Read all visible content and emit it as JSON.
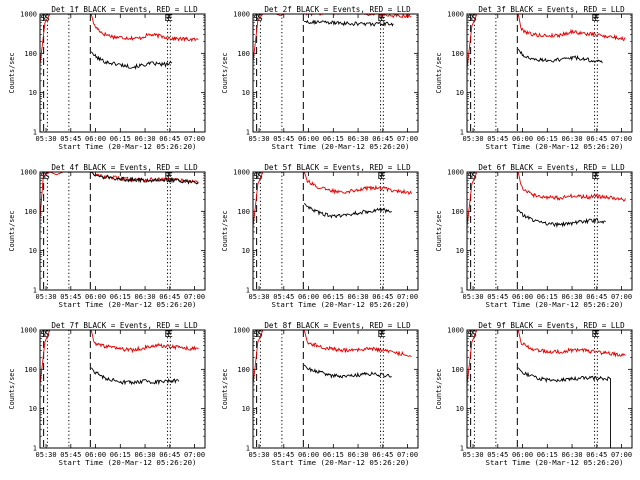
{
  "figure": {
    "shared": {
      "type": "line",
      "title_suffix": "BLACK = Events, RED = LLD",
      "xlabel": "Start Time (20-Mar-12 05:26:20)",
      "ylabel": "Counts/sec",
      "x_ticks": [
        "05:30",
        "05:45",
        "06:00",
        "06:15",
        "06:30",
        "06:45",
        "07:00"
      ],
      "x_tick_minutes": [
        3.67,
        18.67,
        33.67,
        48.67,
        63.67,
        78.67,
        93.67
      ],
      "xlim_minutes": [
        0,
        100
      ],
      "y_scale": "log",
      "ylim": [
        1,
        1000
      ],
      "y_ticks": [
        "1",
        "10",
        "100",
        "1000"
      ],
      "markers": [
        {
          "label": "S",
          "minute": 2.2,
          "style": "dashed"
        },
        {
          "label": "S",
          "minute": 4.5,
          "style": "dotted"
        },
        {
          "label": "",
          "minute": 17.5,
          "style": "dotted"
        },
        {
          "label": "",
          "minute": 30.5,
          "style": "dashed"
        },
        {
          "label": "E",
          "minute": 77.3,
          "style": "dotted"
        },
        {
          "label": "E",
          "minute": 79.0,
          "style": "dotted"
        }
      ],
      "series_colors": {
        "events": "#000000",
        "lld": "#e00000"
      }
    },
    "panels": [
      {
        "title": "Det 1f",
        "jump_minute": 31.0,
        "events": [
          [
            31,
            110
          ],
          [
            34,
            80
          ],
          [
            40,
            60
          ],
          [
            48,
            52
          ],
          [
            56,
            45
          ],
          [
            62,
            50
          ],
          [
            68,
            56
          ],
          [
            74,
            52
          ],
          [
            80,
            55
          ]
        ],
        "lld": [
          [
            0,
            50
          ],
          [
            3,
            600
          ],
          [
            6,
            1000
          ],
          [
            31,
            1000
          ],
          [
            33,
            500
          ],
          [
            38,
            320
          ],
          [
            45,
            260
          ],
          [
            52,
            250
          ],
          [
            60,
            240
          ],
          [
            66,
            300
          ],
          [
            72,
            280
          ],
          [
            80,
            240
          ],
          [
            88,
            230
          ],
          [
            96,
            220
          ]
        ]
      },
      {
        "title": "Det 2f",
        "jump_minute": 31.0,
        "events": [
          [
            31,
            650
          ],
          [
            40,
            620
          ],
          [
            55,
            580
          ],
          [
            70,
            560
          ],
          [
            85,
            560
          ]
        ],
        "lld": [
          [
            0,
            60
          ],
          [
            3,
            700
          ],
          [
            6,
            1000
          ],
          [
            14,
            1000
          ],
          [
            17,
            900
          ],
          [
            20,
            1100
          ],
          [
            31,
            1000
          ],
          [
            40,
            1050
          ],
          [
            52,
            1100
          ],
          [
            62,
            1200
          ],
          [
            70,
            1000
          ],
          [
            85,
            920
          ],
          [
            96,
            900
          ]
        ]
      },
      {
        "title": "Det 3f",
        "jump_minute": 31.0,
        "events": [
          [
            31,
            130
          ],
          [
            34,
            85
          ],
          [
            42,
            70
          ],
          [
            50,
            65
          ],
          [
            58,
            70
          ],
          [
            64,
            78
          ],
          [
            70,
            75
          ],
          [
            76,
            65
          ],
          [
            82,
            60
          ]
        ],
        "lld": [
          [
            0,
            40
          ],
          [
            3,
            500
          ],
          [
            6,
            1000
          ],
          [
            31,
            1000
          ],
          [
            33,
            400
          ],
          [
            40,
            300
          ],
          [
            48,
            280
          ],
          [
            56,
            290
          ],
          [
            64,
            360
          ],
          [
            70,
            320
          ],
          [
            78,
            300
          ],
          [
            86,
            270
          ],
          [
            96,
            230
          ]
        ]
      },
      {
        "title": "Det 4f",
        "jump_minute": 31.0,
        "events": [
          [
            31,
            1000
          ],
          [
            34,
            800
          ],
          [
            42,
            720
          ],
          [
            54,
            640
          ],
          [
            66,
            620
          ],
          [
            80,
            620
          ],
          [
            96,
            540
          ]
        ],
        "lld": [
          [
            0,
            60
          ],
          [
            2,
            800
          ],
          [
            6,
            1000
          ],
          [
            10,
            850
          ],
          [
            14,
            1000
          ],
          [
            31,
            1000
          ],
          [
            34,
            820
          ],
          [
            42,
            740
          ],
          [
            54,
            660
          ],
          [
            66,
            640
          ],
          [
            80,
            640
          ],
          [
            96,
            560
          ]
        ]
      },
      {
        "title": "Det 5f",
        "jump_minute": 31.0,
        "events": [
          [
            31,
            160
          ],
          [
            34,
            120
          ],
          [
            40,
            90
          ],
          [
            48,
            75
          ],
          [
            56,
            78
          ],
          [
            62,
            90
          ],
          [
            70,
            100
          ],
          [
            78,
            110
          ],
          [
            84,
            100
          ]
        ],
        "lld": [
          [
            0,
            40
          ],
          [
            3,
            500
          ],
          [
            6,
            1000
          ],
          [
            31,
            1000
          ],
          [
            33,
            600
          ],
          [
            40,
            400
          ],
          [
            48,
            330
          ],
          [
            56,
            320
          ],
          [
            64,
            360
          ],
          [
            72,
            400
          ],
          [
            80,
            380
          ],
          [
            88,
            330
          ],
          [
            96,
            300
          ]
        ]
      },
      {
        "title": "Det 6f",
        "jump_minute": 31.0,
        "events": [
          [
            31,
            110
          ],
          [
            34,
            80
          ],
          [
            40,
            60
          ],
          [
            48,
            50
          ],
          [
            56,
            46
          ],
          [
            62,
            50
          ],
          [
            70,
            55
          ],
          [
            78,
            60
          ],
          [
            84,
            55
          ]
        ],
        "lld": [
          [
            0,
            40
          ],
          [
            3,
            500
          ],
          [
            6,
            1000
          ],
          [
            31,
            1000
          ],
          [
            33,
            420
          ],
          [
            40,
            260
          ],
          [
            48,
            230
          ],
          [
            56,
            220
          ],
          [
            64,
            250
          ],
          [
            72,
            230
          ],
          [
            80,
            240
          ],
          [
            88,
            220
          ],
          [
            96,
            200
          ]
        ]
      },
      {
        "title": "Det 7f",
        "jump_minute": 31.0,
        "events": [
          [
            31,
            110
          ],
          [
            34,
            80
          ],
          [
            40,
            60
          ],
          [
            48,
            48
          ],
          [
            56,
            46
          ],
          [
            62,
            50
          ],
          [
            70,
            48
          ],
          [
            78,
            52
          ],
          [
            84,
            50
          ]
        ],
        "lld": [
          [
            0,
            40
          ],
          [
            3,
            500
          ],
          [
            6,
            1000
          ],
          [
            31,
            1000
          ],
          [
            33,
            450
          ],
          [
            40,
            380
          ],
          [
            48,
            330
          ],
          [
            56,
            310
          ],
          [
            64,
            360
          ],
          [
            72,
            400
          ],
          [
            80,
            380
          ],
          [
            88,
            350
          ],
          [
            96,
            330
          ]
        ]
      },
      {
        "title": "Det 8f",
        "jump_minute": 31.0,
        "events": [
          [
            31,
            130
          ],
          [
            34,
            100
          ],
          [
            40,
            85
          ],
          [
            48,
            70
          ],
          [
            56,
            65
          ],
          [
            62,
            70
          ],
          [
            70,
            78
          ],
          [
            78,
            72
          ],
          [
            84,
            68
          ]
        ],
        "lld": [
          [
            0,
            40
          ],
          [
            3,
            500
          ],
          [
            6,
            1000
          ],
          [
            31,
            1000
          ],
          [
            33,
            500
          ],
          [
            40,
            380
          ],
          [
            48,
            330
          ],
          [
            56,
            300
          ],
          [
            64,
            320
          ],
          [
            72,
            330
          ],
          [
            80,
            300
          ],
          [
            88,
            260
          ],
          [
            96,
            230
          ]
        ]
      },
      {
        "title": "Det 9f",
        "jump_minute": 31.0,
        "events": [
          [
            31,
            110
          ],
          [
            34,
            80
          ],
          [
            40,
            65
          ],
          [
            48,
            55
          ],
          [
            56,
            52
          ],
          [
            62,
            56
          ],
          [
            70,
            60
          ],
          [
            78,
            60
          ],
          [
            84,
            58
          ],
          [
            87,
            58
          ],
          [
            87,
            1
          ]
        ],
        "lld": [
          [
            0,
            40
          ],
          [
            3,
            500
          ],
          [
            6,
            1000
          ],
          [
            31,
            1000
          ],
          [
            33,
            450
          ],
          [
            40,
            330
          ],
          [
            48,
            290
          ],
          [
            56,
            280
          ],
          [
            64,
            310
          ],
          [
            72,
            300
          ],
          [
            80,
            270
          ],
          [
            88,
            250
          ],
          [
            96,
            220
          ]
        ]
      }
    ]
  }
}
